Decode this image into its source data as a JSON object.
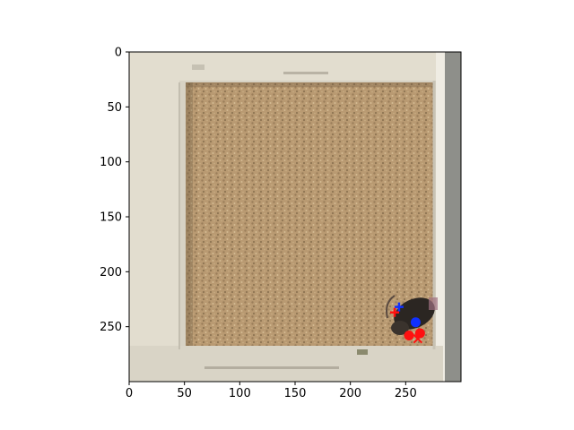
{
  "axes": {
    "x_ticks": [
      "0",
      "50",
      "100",
      "150",
      "200",
      "250"
    ],
    "y_ticks": [
      "0",
      "50",
      "100",
      "150",
      "200",
      "250"
    ],
    "xlim": [
      0,
      300
    ],
    "ylim": [
      300,
      0
    ]
  },
  "image": {
    "subject": "top-down view of a mouse in a square enclosure with bedding",
    "colors": {
      "outer_frame": "#d7d2c4",
      "inner_wall": "#e4dfd2",
      "bedding": "#b99a72",
      "bedding_dark": "#8f7553",
      "mouse": "#2b2622"
    }
  },
  "chart_data": {
    "type": "scatter",
    "markers": [
      {
        "shape": "plus",
        "color": "#1030ff",
        "x": 244,
        "y": 232
      },
      {
        "shape": "plus",
        "color": "#ff1010",
        "x": 240,
        "y": 237
      },
      {
        "shape": "circle",
        "color": "#1030ff",
        "x": 259,
        "y": 246
      },
      {
        "shape": "circle",
        "color": "#ff1010",
        "x": 263,
        "y": 256
      },
      {
        "shape": "circle",
        "color": "#ff1010",
        "x": 253,
        "y": 258
      },
      {
        "shape": "x",
        "color": "#ff1010",
        "x": 261,
        "y": 261
      }
    ]
  }
}
